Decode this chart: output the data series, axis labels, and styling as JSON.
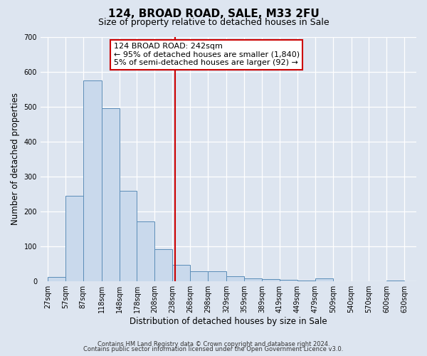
{
  "title": "124, BROAD ROAD, SALE, M33 2FU",
  "subtitle": "Size of property relative to detached houses in Sale",
  "xlabel": "Distribution of detached houses by size in Sale",
  "ylabel": "Number of detached properties",
  "bar_left_edges": [
    27,
    57,
    87,
    118,
    148,
    178,
    208,
    238,
    268,
    298,
    329,
    359,
    389,
    419,
    449,
    479,
    509,
    540,
    570,
    600
  ],
  "bar_widths": [
    30,
    30,
    31,
    30,
    30,
    30,
    30,
    30,
    30,
    31,
    30,
    30,
    30,
    30,
    30,
    30,
    31,
    30,
    30,
    30
  ],
  "bar_heights": [
    12,
    245,
    575,
    495,
    258,
    170,
    92,
    47,
    28,
    28,
    13,
    8,
    5,
    3,
    2,
    8,
    0,
    0,
    0,
    2
  ],
  "bar_color": "#c9d9ec",
  "bar_edge_color": "#5b8db8",
  "vline_x": 242,
  "vline_color": "#cc0000",
  "annotation_title": "124 BROAD ROAD: 242sqm",
  "annotation_line1": "← 95% of detached houses are smaller (1,840)",
  "annotation_line2": "5% of semi-detached houses are larger (92) →",
  "annotation_box_color": "#ffffff",
  "annotation_box_edge_color": "#cc0000",
  "ylim": [
    0,
    700
  ],
  "yticks": [
    0,
    100,
    200,
    300,
    400,
    500,
    600,
    700
  ],
  "xlim": [
    15,
    650
  ],
  "tick_labels": [
    "27sqm",
    "57sqm",
    "87sqm",
    "118sqm",
    "148sqm",
    "178sqm",
    "208sqm",
    "238sqm",
    "268sqm",
    "298sqm",
    "329sqm",
    "359sqm",
    "389sqm",
    "419sqm",
    "449sqm",
    "479sqm",
    "509sqm",
    "540sqm",
    "570sqm",
    "600sqm",
    "630sqm"
  ],
  "tick_positions": [
    27,
    57,
    87,
    118,
    148,
    178,
    208,
    238,
    268,
    298,
    329,
    359,
    389,
    419,
    449,
    479,
    509,
    540,
    570,
    600,
    630
  ],
  "background_color": "#dde5f0",
  "plot_bg_color": "#dde5f0",
  "footer_line1": "Contains HM Land Registry data © Crown copyright and database right 2024.",
  "footer_line2": "Contains public sector information licensed under the Open Government Licence v3.0.",
  "title_fontsize": 11,
  "subtitle_fontsize": 9,
  "axis_label_fontsize": 8.5,
  "tick_fontsize": 7
}
